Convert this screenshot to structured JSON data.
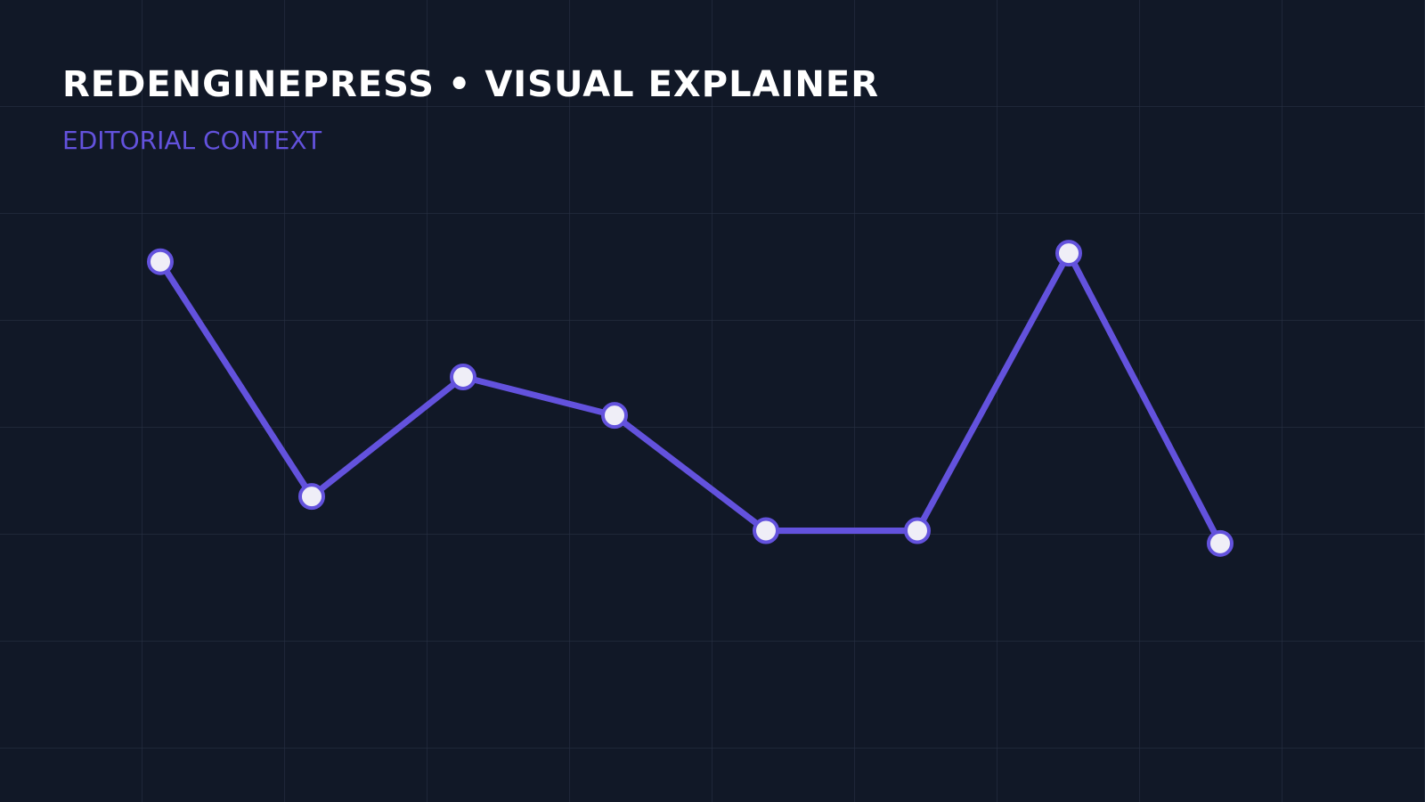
{
  "chart_data": {
    "type": "line",
    "title": "REDENGINEPRESS • VISUAL EXPLAINER",
    "subtitle": "EDITORIAL CONTEXT",
    "categories": [
      null,
      null,
      null,
      null,
      null,
      null,
      null,
      null
    ],
    "values": [
      89,
      34,
      62,
      53,
      26,
      26,
      91,
      23
    ],
    "color": "#6352dd",
    "marker_fill": "#efeef7",
    "ylim": [
      0,
      100
    ]
  }
}
